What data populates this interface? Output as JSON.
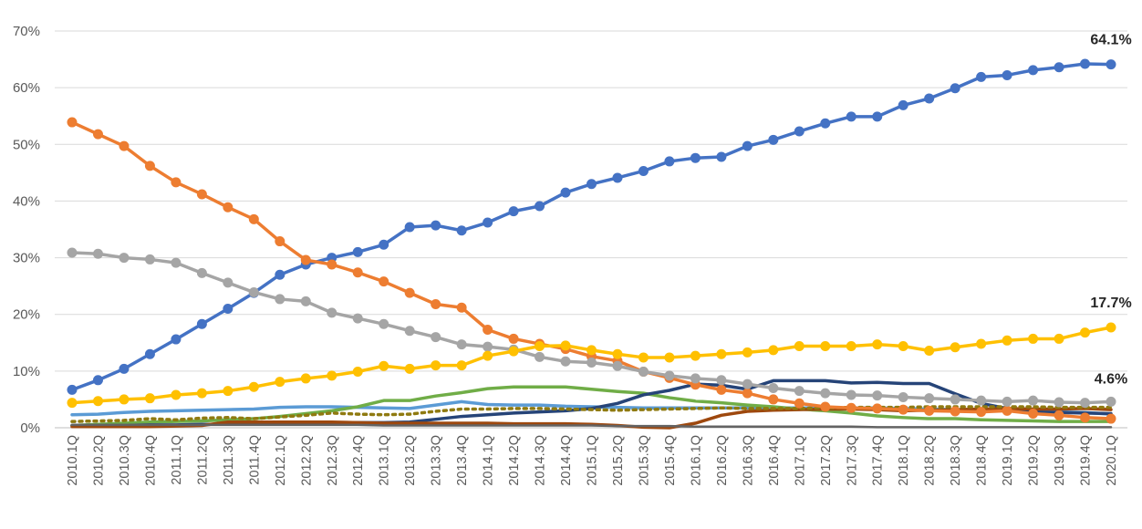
{
  "chart_data": {
    "type": "line",
    "title": "",
    "xlabel": "",
    "ylabel": "",
    "ylim": [
      0,
      0.7
    ],
    "grid": "horizontal",
    "legend": "none",
    "y_ticks": [
      {
        "value": 0,
        "label": "0%"
      },
      {
        "value": 0.1,
        "label": "10%"
      },
      {
        "value": 0.2,
        "label": "20%"
      },
      {
        "value": 0.3,
        "label": "30%"
      },
      {
        "value": 0.4,
        "label": "40%"
      },
      {
        "value": 0.5,
        "label": "50%"
      },
      {
        "value": 0.6,
        "label": "60%"
      },
      {
        "value": 0.7,
        "label": "70%"
      }
    ],
    "categories": [
      "2010.1Q",
      "2010.2Q",
      "2010.3Q",
      "2010.4Q",
      "2011.1Q",
      "2011.2Q",
      "2011.3Q",
      "2011.4Q",
      "2012.1Q",
      "2012.2Q",
      "2012.3Q",
      "2012.4Q",
      "2013.1Q",
      "2013.2Q",
      "2013.3Q",
      "2013.4Q",
      "2014.1Q",
      "2014.2Q",
      "2014.3Q",
      "2014.4Q",
      "2015.1Q",
      "2015.2Q",
      "2015.3Q",
      "2015.4Q",
      "2016.1Q",
      "2016.2Q",
      "2016.3Q",
      "2016.4Q",
      "2017.1Q",
      "2017.2Q",
      "2017.3Q",
      "2017.4Q",
      "2018.1Q",
      "2018.2Q",
      "2018.3Q",
      "2018.4Q",
      "2019.1Q",
      "2019.2Q",
      "2019.3Q",
      "2019.4Q",
      "2020.1Q"
    ],
    "series": [
      {
        "color": "#4472c4",
        "marker": true,
        "dash": "",
        "width": 3.5,
        "values": [
          0.067,
          0.084,
          0.104,
          0.13,
          0.156,
          0.183,
          0.21,
          0.238,
          0.27,
          0.288,
          0.3,
          0.31,
          0.323,
          0.354,
          0.357,
          0.348,
          0.362,
          0.382,
          0.391,
          0.415,
          0.43,
          0.441,
          0.453,
          0.47,
          0.476,
          0.478,
          0.497,
          0.508,
          0.523,
          0.537,
          0.549,
          0.549,
          0.569,
          0.581,
          0.599,
          0.619,
          0.622,
          0.631,
          0.636,
          0.642,
          0.641
        ]
      },
      {
        "color": "#ed7d31",
        "marker": true,
        "dash": "",
        "width": 3.5,
        "values": [
          0.539,
          0.518,
          0.497,
          0.462,
          0.433,
          0.412,
          0.389,
          0.368,
          0.329,
          0.296,
          0.288,
          0.274,
          0.258,
          0.238,
          0.218,
          0.212,
          0.173,
          0.157,
          0.148,
          0.139,
          0.126,
          0.118,
          0.099,
          0.088,
          0.076,
          0.067,
          0.061,
          0.05,
          0.043,
          0.037,
          0.035,
          0.034,
          0.032,
          0.03,
          0.029,
          0.028,
          0.03,
          0.025,
          0.022,
          0.018,
          0.016
        ]
      },
      {
        "color": "#a5a5a5",
        "marker": true,
        "dash": "",
        "width": 3.5,
        "values": [
          0.309,
          0.307,
          0.3,
          0.297,
          0.291,
          0.273,
          0.256,
          0.239,
          0.227,
          0.223,
          0.203,
          0.193,
          0.183,
          0.171,
          0.16,
          0.147,
          0.143,
          0.138,
          0.125,
          0.117,
          0.115,
          0.109,
          0.099,
          0.092,
          0.087,
          0.084,
          0.077,
          0.07,
          0.065,
          0.061,
          0.058,
          0.057,
          0.054,
          0.052,
          0.05,
          0.048,
          0.046,
          0.048,
          0.045,
          0.044,
          0.046
        ]
      },
      {
        "color": "#ffc000",
        "marker": true,
        "dash": "",
        "width": 3.5,
        "values": [
          0.044,
          0.047,
          0.05,
          0.052,
          0.058,
          0.061,
          0.065,
          0.072,
          0.081,
          0.087,
          0.092,
          0.099,
          0.109,
          0.104,
          0.11,
          0.11,
          0.127,
          0.135,
          0.144,
          0.145,
          0.137,
          0.13,
          0.124,
          0.124,
          0.127,
          0.13,
          0.133,
          0.137,
          0.144,
          0.144,
          0.144,
          0.147,
          0.144,
          0.136,
          0.142,
          0.148,
          0.154,
          0.157,
          0.157,
          0.168,
          0.177
        ]
      },
      {
        "color": "#5b9bd5",
        "marker": false,
        "dash": "",
        "width": 3.5,
        "values": [
          0.023,
          0.024,
          0.027,
          0.029,
          0.03,
          0.031,
          0.032,
          0.033,
          0.036,
          0.037,
          0.037,
          0.036,
          0.035,
          0.034,
          0.04,
          0.046,
          0.041,
          0.04,
          0.04,
          0.038,
          0.037,
          0.036,
          0.035,
          0.035,
          0.035,
          0.035,
          0.035,
          0.035,
          0.035,
          0.035,
          0.035,
          0.035,
          0.034,
          0.033,
          0.032,
          0.031,
          0.03,
          0.029,
          0.028,
          0.027,
          0.024
        ]
      },
      {
        "color": "#70ad47",
        "marker": false,
        "dash": "",
        "width": 3.5,
        "values": [
          0.004,
          0.006,
          0.008,
          0.01,
          0.011,
          0.012,
          0.014,
          0.016,
          0.02,
          0.025,
          0.03,
          0.037,
          0.048,
          0.048,
          0.056,
          0.062,
          0.069,
          0.072,
          0.072,
          0.072,
          0.068,
          0.064,
          0.061,
          0.053,
          0.047,
          0.044,
          0.04,
          0.037,
          0.033,
          0.03,
          0.026,
          0.021,
          0.018,
          0.016,
          0.016,
          0.014,
          0.013,
          0.012,
          0.011,
          0.011,
          0.011
        ]
      },
      {
        "color": "#264478",
        "marker": false,
        "dash": "",
        "width": 3.5,
        "values": [
          0.004,
          0.004,
          0.004,
          0.005,
          0.005,
          0.006,
          0.006,
          0.007,
          0.007,
          0.008,
          0.008,
          0.009,
          0.009,
          0.01,
          0.015,
          0.02,
          0.023,
          0.026,
          0.028,
          0.03,
          0.034,
          0.043,
          0.058,
          0.066,
          0.077,
          0.075,
          0.068,
          0.083,
          0.083,
          0.083,
          0.079,
          0.08,
          0.078,
          0.078,
          0.06,
          0.043,
          0.034,
          0.028,
          0.027,
          0.026,
          0.025
        ]
      },
      {
        "color": "#9e480e",
        "marker": false,
        "dash": "",
        "width": 3.5,
        "values": [
          0.002,
          0.002,
          0.002,
          0.002,
          0.003,
          0.004,
          0.01,
          0.01,
          0.01,
          0.01,
          0.01,
          0.009,
          0.008,
          0.008,
          0.008,
          0.008,
          0.008,
          0.007,
          0.007,
          0.007,
          0.006,
          0.004,
          0.001,
          0.0,
          0.008,
          0.022,
          0.029,
          0.031,
          0.032,
          0.033,
          0.033,
          0.032,
          0.03,
          0.031,
          0.032,
          0.033,
          0.034,
          0.033,
          0.033,
          0.034,
          0.032
        ]
      },
      {
        "color": "#8f7a10",
        "marker": false,
        "dash": "3 5",
        "width": 3.5,
        "values": [
          0.011,
          0.012,
          0.013,
          0.016,
          0.014,
          0.017,
          0.018,
          0.016,
          0.019,
          0.022,
          0.026,
          0.024,
          0.023,
          0.024,
          0.029,
          0.033,
          0.033,
          0.034,
          0.034,
          0.033,
          0.032,
          0.031,
          0.032,
          0.033,
          0.034,
          0.035,
          0.034,
          0.034,
          0.034,
          0.035,
          0.036,
          0.036,
          0.036,
          0.037,
          0.037,
          0.037,
          0.037,
          0.037,
          0.036,
          0.036,
          0.036
        ]
      },
      {
        "color": "#636363",
        "marker": false,
        "dash": "",
        "width": 2.5,
        "values": [
          0.005,
          0.005,
          0.005,
          0.005,
          0.005,
          0.005,
          0.005,
          0.005,
          0.005,
          0.005,
          0.005,
          0.005,
          0.004,
          0.004,
          0.004,
          0.004,
          0.004,
          0.004,
          0.004,
          0.004,
          0.004,
          0.003,
          0.003,
          0.003,
          0.002,
          0.002,
          0.002,
          0.002,
          0.002,
          0.002,
          0.002,
          0.001,
          0.001,
          0.001,
          0.001,
          0.001,
          0.001,
          0.001,
          0.001,
          0.001,
          0.001
        ]
      }
    ],
    "annotations": [
      {
        "series_index": 0,
        "point_index": 40,
        "label": "64.1%"
      },
      {
        "series_index": 3,
        "point_index": 40,
        "label": "17.7%"
      },
      {
        "series_index": 2,
        "point_index": 40,
        "label": "4.6%"
      }
    ]
  }
}
